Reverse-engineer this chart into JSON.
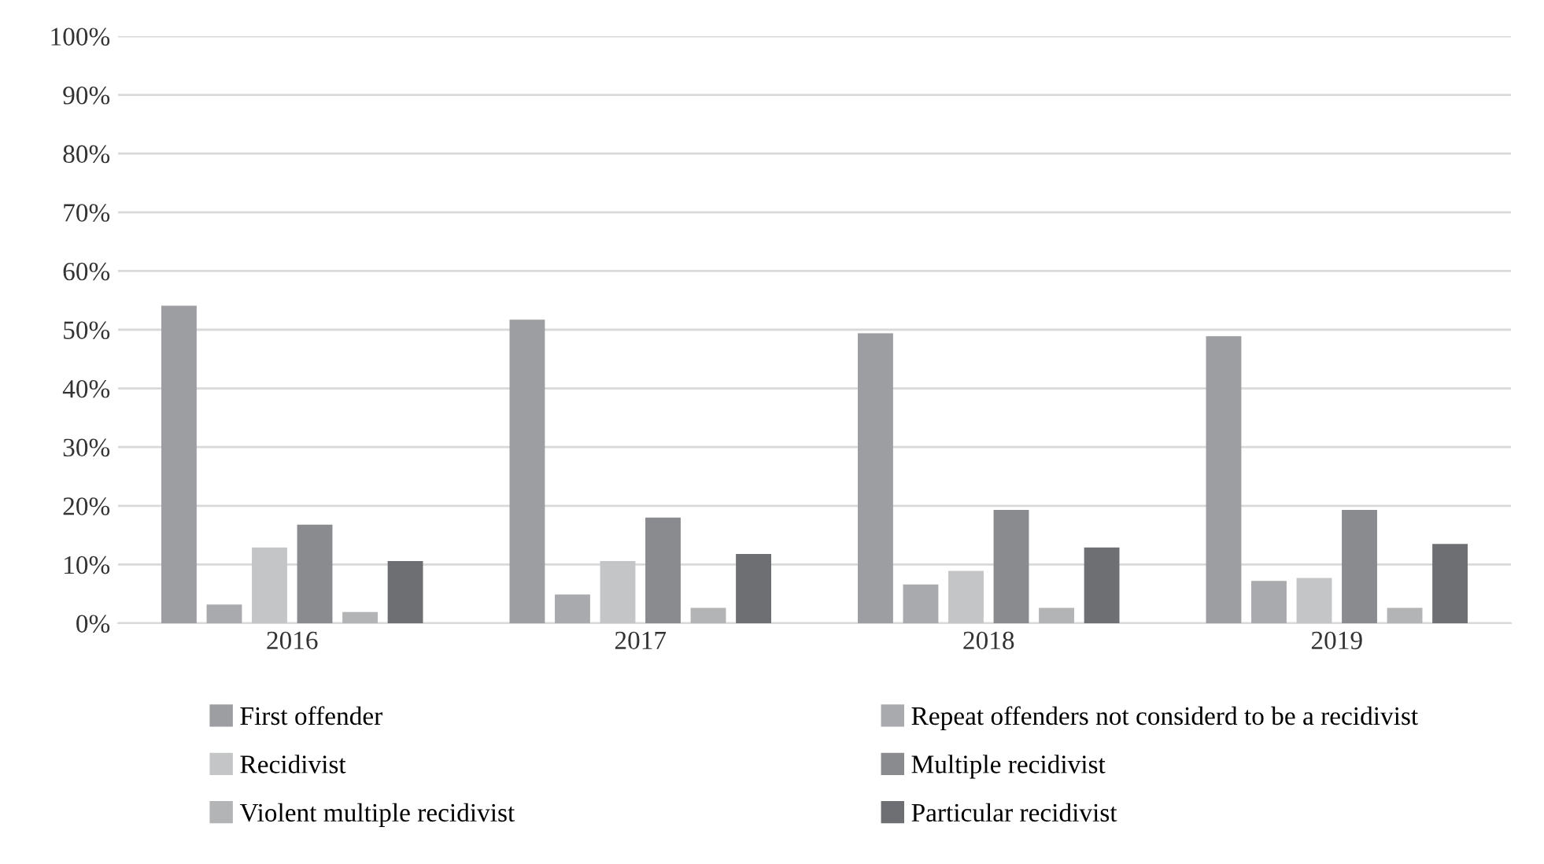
{
  "chart_data": {
    "type": "bar",
    "categories": [
      "2016",
      "2017",
      "2018",
      "2019"
    ],
    "series": [
      {
        "name": "First offender",
        "color": "#9d9ea1",
        "values": [
          54.1,
          51.7,
          49.4,
          48.9
        ]
      },
      {
        "name": "Repeat offenders not considerd to be a recidivist",
        "color": "#a9aaad",
        "values": [
          3.2,
          4.9,
          6.6,
          7.2
        ]
      },
      {
        "name": "Recidivist",
        "color": "#c4c5c7",
        "values": [
          12.9,
          10.6,
          8.9,
          7.7
        ]
      },
      {
        "name": "Multiple recidivist",
        "color": "#8a8b8e",
        "values": [
          16.8,
          18.0,
          19.3,
          19.3
        ]
      },
      {
        "name": "Violent multiple recidivist",
        "color": "#b3b4b6",
        "values": [
          1.9,
          2.6,
          2.6,
          2.6
        ]
      },
      {
        "name": "Particular recidivist",
        "color": "#6e6f72",
        "values": [
          10.6,
          11.8,
          12.9,
          13.5
        ]
      }
    ],
    "ylim": [
      0,
      100
    ],
    "yticks": [
      {
        "value": 0,
        "label": "0%"
      },
      {
        "value": 10,
        "label": "10%"
      },
      {
        "value": 20,
        "label": "20%"
      },
      {
        "value": 30,
        "label": "30%"
      },
      {
        "value": 40,
        "label": "40%"
      },
      {
        "value": 50,
        "label": "50%"
      },
      {
        "value": 60,
        "label": "60%"
      },
      {
        "value": 70,
        "label": "70%"
      },
      {
        "value": 80,
        "label": "80%"
      },
      {
        "value": 90,
        "label": "90%"
      },
      {
        "value": 100,
        "label": "100%"
      }
    ],
    "grid": "y",
    "legend": "bottom"
  }
}
